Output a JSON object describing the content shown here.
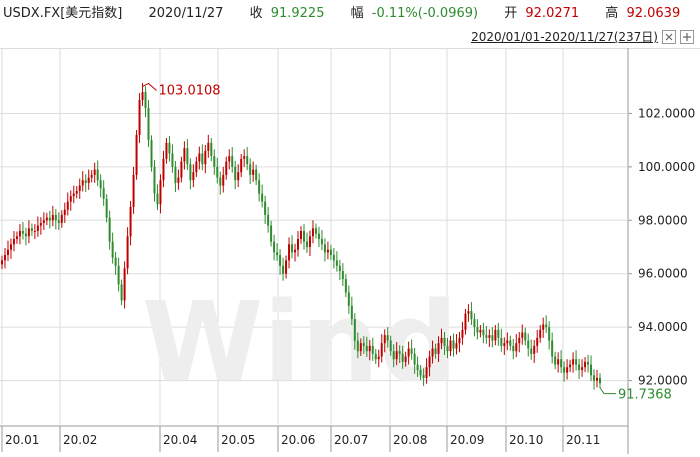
{
  "header": {
    "symbol": "USDX.FX[美元指数]",
    "date": "2020/11/27",
    "close_label": "收",
    "close_value": "91.9225",
    "change_label": "幅",
    "change_value": "-0.11%(-0.0969)",
    "open_label": "开",
    "open_value": "92.0271",
    "high_label": "高",
    "high_value": "92.0639"
  },
  "range": {
    "label": "2020/01/01-2020/11/27(237日)"
  },
  "watermark": "Wind",
  "colors": {
    "up": "#c00000",
    "down": "#2e8b2e",
    "grid": "#dddddd"
  },
  "chart_data": {
    "type": "candlestick",
    "ylim": [
      90.3,
      104.3
    ],
    "y_ticks": [
      92,
      94,
      96,
      98,
      100,
      102
    ],
    "y_tick_labels": [
      "92.0000",
      "94.0000",
      "96.0000",
      "98.0000",
      "100.0000",
      "102.0000"
    ],
    "x_ticks": [
      "20.01",
      "20.02",
      "20.04",
      "20.05",
      "20.06",
      "20.07",
      "20.08",
      "20.09",
      "20.10",
      "20.11"
    ],
    "annotations": [
      {
        "text": "103.0108",
        "value": 103.0108,
        "type": "max"
      },
      {
        "text": "91.7368",
        "value": 91.7368,
        "type": "min"
      }
    ],
    "closes": [
      96.5,
      96.7,
      96.9,
      97.1,
      97.3,
      97.4,
      97.6,
      97.5,
      97.4,
      97.7,
      97.6,
      97.6,
      97.8,
      97.9,
      98.0,
      98.1,
      98.0,
      98.2,
      98.0,
      97.9,
      98.2,
      98.4,
      98.7,
      98.9,
      99.0,
      99.1,
      99.3,
      99.5,
      99.4,
      99.6,
      99.7,
      99.9,
      99.5,
      99.2,
      98.8,
      98.1,
      97.2,
      96.6,
      96.3,
      95.6,
      95.0,
      96.2,
      97.4,
      98.5,
      99.7,
      101.2,
      102.5,
      102.8,
      102.2,
      101.0,
      100.0,
      99.0,
      98.6,
      99.5,
      100.3,
      100.9,
      100.5,
      100.0,
      99.4,
      99.6,
      100.2,
      100.7,
      100.1,
      99.5,
      99.8,
      100.2,
      100.5,
      100.1,
      100.6,
      100.9,
      100.4,
      100.0,
      99.6,
      99.3,
      99.7,
      100.2,
      100.4,
      100.0,
      99.5,
      99.8,
      100.3,
      100.4,
      100.1,
      99.7,
      99.9,
      99.5,
      99.0,
      98.7,
      98.2,
      97.8,
      97.2,
      96.8,
      96.7,
      96.3,
      96.0,
      96.5,
      97.1,
      96.8,
      96.9,
      97.3,
      97.6,
      97.2,
      97.0,
      97.4,
      97.7,
      97.5,
      97.3,
      97.1,
      96.8,
      96.9,
      96.7,
      96.5,
      96.3,
      96.1,
      95.8,
      95.3,
      94.8,
      94.3,
      93.5,
      93.1,
      93.4,
      93.3,
      93.1,
      93.3,
      93.0,
      92.8,
      92.9,
      93.4,
      93.7,
      93.5,
      93.1,
      92.8,
      93.1,
      93.0,
      92.7,
      92.9,
      93.2,
      93.0,
      92.6,
      92.4,
      92.2,
      92.1,
      92.5,
      92.9,
      93.2,
      93.0,
      93.4,
      93.6,
      93.3,
      93.1,
      93.5,
      93.2,
      93.4,
      93.6,
      93.9,
      94.5,
      94.6,
      94.3,
      94.0,
      93.8,
      93.9,
      93.7,
      93.6,
      93.7,
      93.5,
      93.9,
      93.6,
      93.3,
      93.4,
      93.5,
      93.3,
      93.1,
      93.4,
      93.6,
      93.8,
      93.5,
      93.2,
      93.0,
      93.3,
      93.6,
      93.9,
      94.1,
      94.0,
      93.5,
      92.9,
      92.6,
      92.8,
      92.5,
      92.3,
      92.5,
      92.6,
      92.8,
      92.6,
      92.4,
      92.5,
      92.7,
      92.6,
      92.2,
      92.0,
      92.1,
      91.9
    ]
  }
}
